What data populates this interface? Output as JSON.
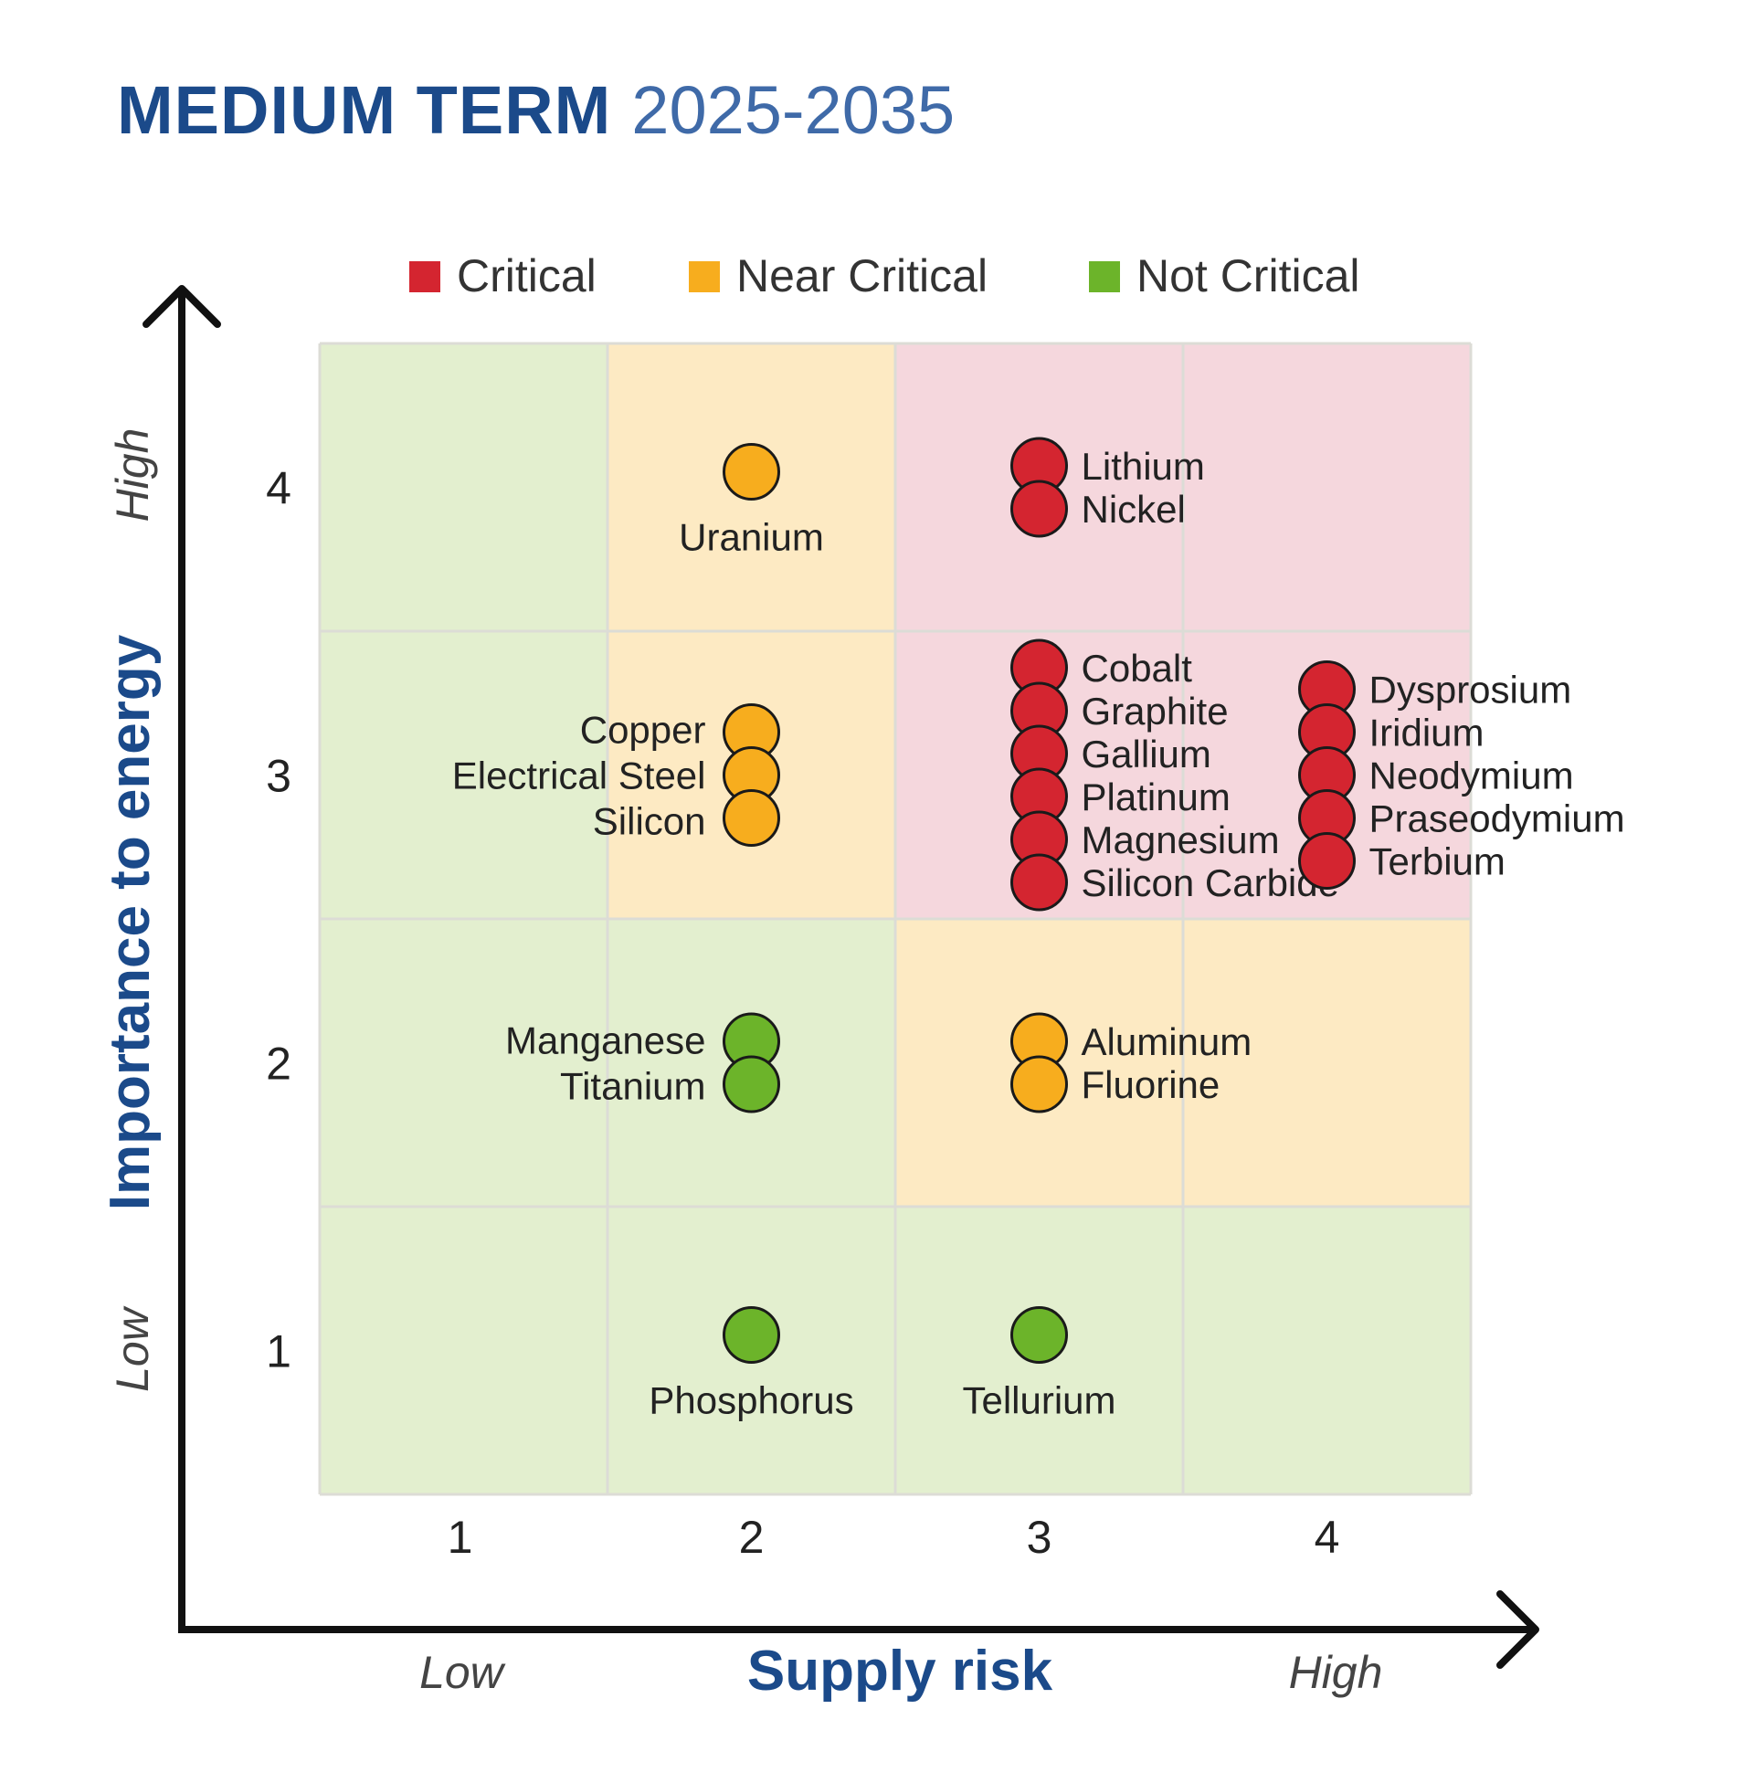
{
  "header": {
    "title_bold": "MEDIUM TERM",
    "title_years": "2025-2035"
  },
  "colors": {
    "critical": "#d42530",
    "near_critical": "#f7ad1e",
    "not_critical": "#6cb42a",
    "zone_critical": "#f5d7dd",
    "zone_near_critical": "#fdeac3",
    "zone_not_critical": "#e3efcf",
    "axis_title": "#1b4a8a"
  },
  "chart_data": {
    "type": "scatter",
    "legend": {
      "position": "top",
      "items": [
        {
          "label": "Critical",
          "color": "#d42530"
        },
        {
          "label": "Near Critical",
          "color": "#f7ad1e"
        },
        {
          "label": "Not Critical",
          "color": "#6cb42a"
        }
      ]
    },
    "xlabel": "Supply risk",
    "ylabel": "Importance to energy",
    "x_ticks": [
      "1",
      "2",
      "3",
      "4"
    ],
    "y_ticks": [
      "1",
      "2",
      "3",
      "4"
    ],
    "xlim": [
      0.5,
      4.5
    ],
    "ylim": [
      0.5,
      4.5
    ],
    "x_low_label": "Low",
    "x_high_label": "High",
    "y_low_label": "Low",
    "y_high_label": "High",
    "grid": true,
    "zones": [
      [
        "not_critical",
        "near_critical",
        "critical",
        "critical"
      ],
      [
        "not_critical",
        "near_critical",
        "critical",
        "critical"
      ],
      [
        "not_critical",
        "not_critical",
        "near_critical",
        "near_critical"
      ],
      [
        "not_critical",
        "not_critical",
        "not_critical",
        "not_critical"
      ]
    ],
    "groups": [
      {
        "x": 2,
        "y": 4,
        "category": "near_critical",
        "label_side": "below",
        "materials": [
          "Uranium"
        ]
      },
      {
        "x": 3,
        "y": 4,
        "category": "critical",
        "label_side": "right",
        "materials": [
          "Lithium",
          "Nickel"
        ]
      },
      {
        "x": 2,
        "y": 3,
        "category": "near_critical",
        "label_side": "left",
        "materials": [
          "Copper",
          "Electrical Steel",
          "Silicon"
        ]
      },
      {
        "x": 3,
        "y": 3,
        "category": "critical",
        "label_side": "right",
        "materials": [
          "Cobalt",
          "Graphite",
          "Gallium",
          "Platinum",
          "Magnesium",
          "Silicon Carbide"
        ]
      },
      {
        "x": 4,
        "y": 3,
        "category": "critical",
        "label_side": "right",
        "materials": [
          "Dysprosium",
          "Iridium",
          "Neodymium",
          "Praseodymium",
          "Terbium"
        ]
      },
      {
        "x": 2,
        "y": 2,
        "category": "not_critical",
        "label_side": "left",
        "materials": [
          "Manganese",
          "Titanium"
        ]
      },
      {
        "x": 3,
        "y": 2,
        "category": "near_critical",
        "label_side": "right",
        "materials": [
          "Aluminum",
          "Fluorine"
        ]
      },
      {
        "x": 2,
        "y": 1,
        "category": "not_critical",
        "label_side": "below",
        "materials": [
          "Phosphorus"
        ]
      },
      {
        "x": 3,
        "y": 1,
        "category": "not_critical",
        "label_side": "below",
        "materials": [
          "Tellurium"
        ]
      }
    ]
  }
}
